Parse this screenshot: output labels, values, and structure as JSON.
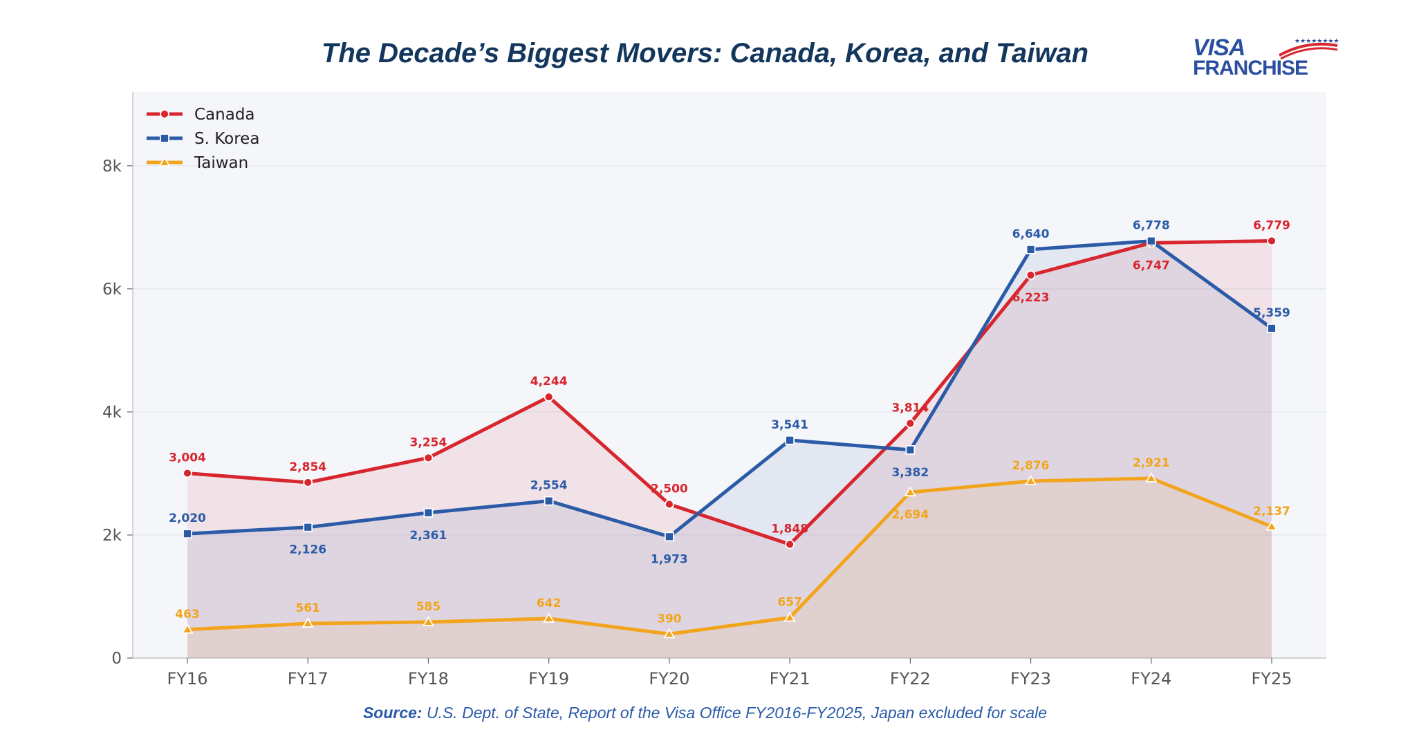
{
  "title": "The Decade’s Biggest Movers: Canada, Korea, and Taiwan",
  "logo": {
    "line1": "VISA",
    "line2": "FRANCHISE"
  },
  "source": {
    "label": "Source:",
    "text": "U.S. Dept. of State, Report of the Visa Office FY2016-FY2025, Japan excluded for scale"
  },
  "chart_data": {
    "type": "line",
    "categories": [
      "FY16",
      "FY17",
      "FY18",
      "FY19",
      "FY20",
      "FY21",
      "FY22",
      "FY23",
      "FY24",
      "FY25"
    ],
    "yticks": [
      0,
      2000,
      4000,
      6000,
      8000
    ],
    "ytick_labels": [
      "0",
      "2k",
      "4k",
      "6k",
      "8k"
    ],
    "ylim": [
      0,
      9200
    ],
    "legend_position": "top-left",
    "grid": true,
    "series": [
      {
        "name": "Canada",
        "color": "#d7262e",
        "marker": "circle",
        "values": [
          3004,
          2854,
          3254,
          4244,
          2500,
          1848,
          3814,
          6223,
          6747,
          6779
        ],
        "labels": [
          "3,004",
          "2,854",
          "3,254",
          "4,244",
          "2,500",
          "1,848",
          "3,814",
          "6,223",
          "6,747",
          "6,779"
        ]
      },
      {
        "name": "S. Korea",
        "color": "#2b5ba7",
        "marker": "square",
        "values": [
          2020,
          2126,
          2361,
          2554,
          1973,
          3541,
          3382,
          6640,
          6778,
          5359
        ],
        "labels": [
          "2,020",
          "2,126",
          "2,361",
          "2,554",
          "1,973",
          "3,541",
          "3,382",
          "6,640",
          "6,778",
          "5,359"
        ]
      },
      {
        "name": "Taiwan",
        "color": "#f2a51c",
        "marker": "triangle",
        "values": [
          463,
          561,
          585,
          642,
          390,
          657,
          2694,
          2876,
          2921,
          2137
        ],
        "labels": [
          "463",
          "561",
          "585",
          "642",
          "390",
          "657",
          "2,694",
          "2,876",
          "2,921",
          "2,137"
        ]
      }
    ]
  }
}
